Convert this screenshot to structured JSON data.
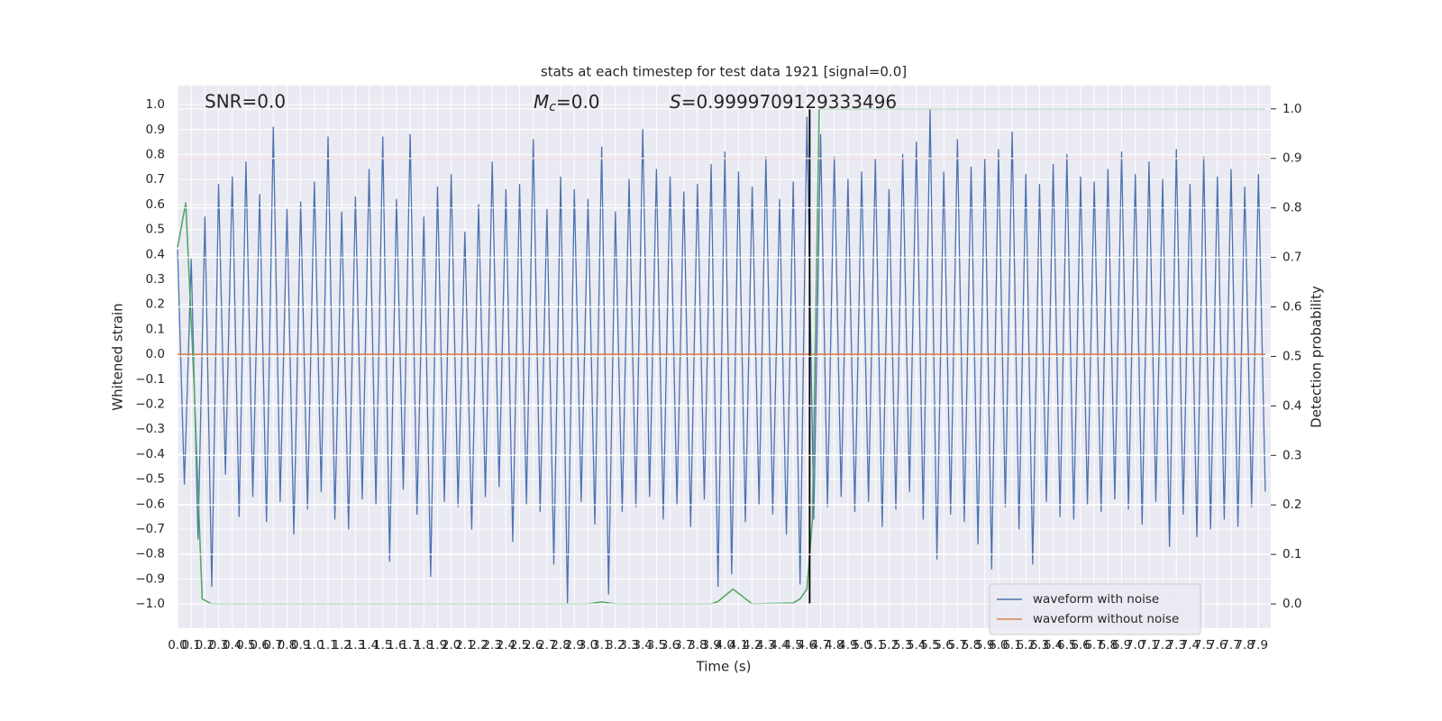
{
  "chart_data": {
    "type": "line",
    "title": "stats at each timestep for test data 1921 [signal=0.0]",
    "x_label": "Time (s)",
    "y_label": "Whitened strain",
    "y2_label": "Detection probability",
    "annotations": [
      {
        "text": "SNR=0.0"
      },
      {
        "symbol": "M",
        "subscript": "c",
        "text": "=0.0"
      },
      {
        "symbol": "S",
        "text": "=0.9999709129333496"
      }
    ],
    "xlim": [
      0,
      7.99
    ],
    "ylim": [
      -1.097,
      1.076
    ],
    "y2lim": [
      -0.049,
      1.047
    ],
    "grid": true,
    "legend": "lower right",
    "xticks": [
      {
        "value": 0,
        "label": "0.0"
      },
      0.1,
      0.2,
      0.3,
      0.4,
      0.5,
      0.6,
      0.7,
      0.8,
      0.9,
      {
        "value": 1,
        "label": "1.0"
      },
      1.1,
      1.2,
      1.3,
      1.4,
      1.5,
      1.6,
      1.7,
      1.8,
      1.9,
      {
        "value": 2,
        "label": "2.0"
      },
      2.1,
      2.2,
      2.3,
      2.4,
      2.5,
      2.6,
      2.7,
      2.8,
      2.9,
      {
        "value": 3,
        "label": "3.0"
      },
      3.1,
      3.2,
      3.3,
      3.4,
      3.5,
      3.6,
      3.7,
      3.8,
      3.9,
      {
        "value": 4,
        "label": "4.0"
      },
      4.1,
      4.2,
      4.3,
      4.4,
      4.5,
      4.6,
      4.7,
      4.8,
      4.9,
      {
        "value": 5,
        "label": "5.0"
      },
      5.1,
      5.2,
      5.3,
      5.4,
      5.5,
      5.6,
      5.7,
      5.8,
      5.9,
      {
        "value": 6,
        "label": "6.0"
      },
      6.1,
      6.2,
      6.3,
      6.4,
      6.5,
      6.6,
      6.7,
      6.8,
      6.9,
      {
        "value": 7,
        "label": "7.0"
      },
      7.1,
      7.2,
      7.3,
      7.4,
      7.5,
      7.6,
      7.7,
      7.8,
      7.9
    ],
    "yticks": [
      {
        "value": -1,
        "label": "−1.0"
      },
      {
        "value": -0.9,
        "label": "−0.9"
      },
      {
        "value": -0.8,
        "label": "−0.8"
      },
      {
        "value": -0.7,
        "label": "−0.7"
      },
      {
        "value": -0.6,
        "label": "−0.6"
      },
      {
        "value": -0.5,
        "label": "−0.5"
      },
      {
        "value": -0.4,
        "label": "−0.4"
      },
      {
        "value": -0.3,
        "label": "−0.3"
      },
      {
        "value": -0.2,
        "label": "−0.2"
      },
      {
        "value": -0.1,
        "label": "−0.1"
      },
      {
        "value": 0,
        "label": "0.0"
      },
      0.1,
      0.2,
      0.3,
      0.4,
      0.5,
      0.6,
      0.7,
      0.8,
      0.9,
      {
        "value": 1,
        "label": "1.0"
      }
    ],
    "y2ticks": [
      {
        "value": 0,
        "label": "0.0"
      },
      0.1,
      0.2,
      0.3,
      0.4,
      0.5,
      0.6,
      0.7,
      0.8,
      0.9,
      {
        "value": 1,
        "label": "1.0"
      }
    ],
    "series": [
      {
        "name": "waveform with noise",
        "color": "#4c72b0",
        "x": [
          0,
          0.05,
          0.1,
          0.15,
          0.2,
          0.25,
          0.3,
          0.35,
          0.4,
          0.45,
          0.5,
          0.55,
          0.6,
          0.65,
          0.7,
          0.75,
          0.8,
          0.85,
          0.9,
          0.95,
          1,
          1.05,
          1.1,
          1.15,
          1.2,
          1.25,
          1.3,
          1.35,
          1.4,
          1.45,
          1.5,
          1.55,
          1.6,
          1.65,
          1.7,
          1.75,
          1.8,
          1.85,
          1.9,
          1.95,
          2,
          2.05,
          2.1,
          2.15,
          2.2,
          2.25,
          2.3,
          2.35,
          2.4,
          2.45,
          2.5,
          2.55,
          2.6,
          2.65,
          2.7,
          2.75,
          2.8,
          2.85,
          2.9,
          2.95,
          3,
          3.05,
          3.1,
          3.15,
          3.2,
          3.25,
          3.3,
          3.35,
          3.4,
          3.45,
          3.5,
          3.55,
          3.6,
          3.65,
          3.7,
          3.75,
          3.8,
          3.85,
          3.9,
          3.95,
          4,
          4.05,
          4.1,
          4.15,
          4.2,
          4.25,
          4.3,
          4.35,
          4.4,
          4.45,
          4.5,
          4.55,
          4.6,
          4.65,
          4.7,
          4.75,
          4.8,
          4.85,
          4.9,
          4.95,
          5,
          5.05,
          5.1,
          5.15,
          5.2,
          5.25,
          5.3,
          5.35,
          5.4,
          5.45,
          5.5,
          5.55,
          5.6,
          5.65,
          5.7,
          5.75,
          5.8,
          5.85,
          5.9,
          5.95,
          6,
          6.05,
          6.1,
          6.15,
          6.2,
          6.25,
          6.3,
          6.35,
          6.4,
          6.45,
          6.5,
          6.55,
          6.6,
          6.65,
          6.7,
          6.75,
          6.8,
          6.85,
          6.9,
          6.95,
          7,
          7.05,
          7.1,
          7.15,
          7.2,
          7.25,
          7.3,
          7.35,
          7.4,
          7.45,
          7.5,
          7.55,
          7.6,
          7.65,
          7.7,
          7.75,
          7.8,
          7.85,
          7.9,
          7.95
        ],
        "values": [
          0.42,
          -0.52,
          0.38,
          -0.74,
          0.55,
          -0.93,
          0.68,
          -0.48,
          0.71,
          -0.65,
          0.77,
          -0.57,
          0.64,
          -0.67,
          0.91,
          -0.59,
          0.58,
          -0.72,
          0.61,
          -0.62,
          0.69,
          -0.55,
          0.87,
          -0.66,
          0.57,
          -0.7,
          0.63,
          -0.58,
          0.74,
          -0.6,
          0.87,
          -0.83,
          0.62,
          -0.54,
          0.88,
          -0.64,
          0.55,
          -0.89,
          0.67,
          -0.59,
          0.72,
          -0.61,
          0.49,
          -0.7,
          0.6,
          -0.57,
          0.77,
          -0.53,
          0.66,
          -0.75,
          0.68,
          -0.6,
          0.86,
          -0.63,
          0.58,
          -0.84,
          0.71,
          -1.0,
          0.66,
          -0.59,
          0.62,
          -0.68,
          0.83,
          -0.96,
          0.57,
          -0.63,
          0.7,
          -0.61,
          0.9,
          -0.57,
          0.74,
          -0.66,
          0.71,
          -0.6,
          0.65,
          -0.69,
          0.68,
          -0.58,
          0.76,
          -0.93,
          0.81,
          -0.88,
          0.73,
          -0.67,
          0.67,
          -0.6,
          0.79,
          -0.64,
          0.62,
          -0.72,
          0.69,
          -0.92,
          0.95,
          -0.66,
          0.88,
          -0.61,
          0.79,
          -0.57,
          0.7,
          -0.63,
          0.73,
          -0.59,
          0.78,
          -0.69,
          0.66,
          -0.62,
          0.8,
          -0.55,
          0.85,
          -0.66,
          0.98,
          -0.82,
          0.73,
          -0.64,
          0.86,
          -0.67,
          0.75,
          -0.76,
          0.78,
          -0.86,
          0.82,
          -0.61,
          0.89,
          -0.7,
          0.72,
          -0.84,
          0.68,
          -0.59,
          0.76,
          -0.65,
          0.8,
          -0.66,
          0.71,
          -0.6,
          0.69,
          -0.63,
          0.74,
          -0.58,
          0.81,
          -0.62,
          0.72,
          -0.68,
          0.77,
          -0.59,
          0.7,
          -0.77,
          0.82,
          -0.64,
          0.68,
          -0.73,
          0.79,
          -0.7,
          0.71,
          -0.66,
          0.74,
          -0.69,
          0.67,
          -0.61,
          0.72,
          -0.55
        ]
      },
      {
        "name": "waveform without noise",
        "color": "#dd8452",
        "x": [
          0,
          7.95
        ],
        "values": [
          0,
          0
        ]
      },
      {
        "color": "#55a868",
        "axis": "y2",
        "x": [
          0,
          0.06,
          0.12,
          0.18,
          0.25,
          3.0,
          3.1,
          3.2,
          3.9,
          3.95,
          4.06,
          4.2,
          4.5,
          4.55,
          4.6,
          4.64,
          4.69,
          7.95
        ],
        "values": [
          0.72,
          0.81,
          0.45,
          0.01,
          0,
          0,
          0.004,
          0,
          0,
          0.005,
          0.03,
          0,
          0.002,
          0.01,
          0.03,
          0.17,
          1.0,
          1.0
        ]
      }
    ],
    "hlines": [
      {
        "y": 0.9,
        "axis": "y2",
        "color": "#c44e52"
      }
    ],
    "vlines": [
      {
        "x": 4.62,
        "ymin": 0,
        "ymax": 1,
        "axis": "y2",
        "color": "#000000"
      }
    ]
  }
}
